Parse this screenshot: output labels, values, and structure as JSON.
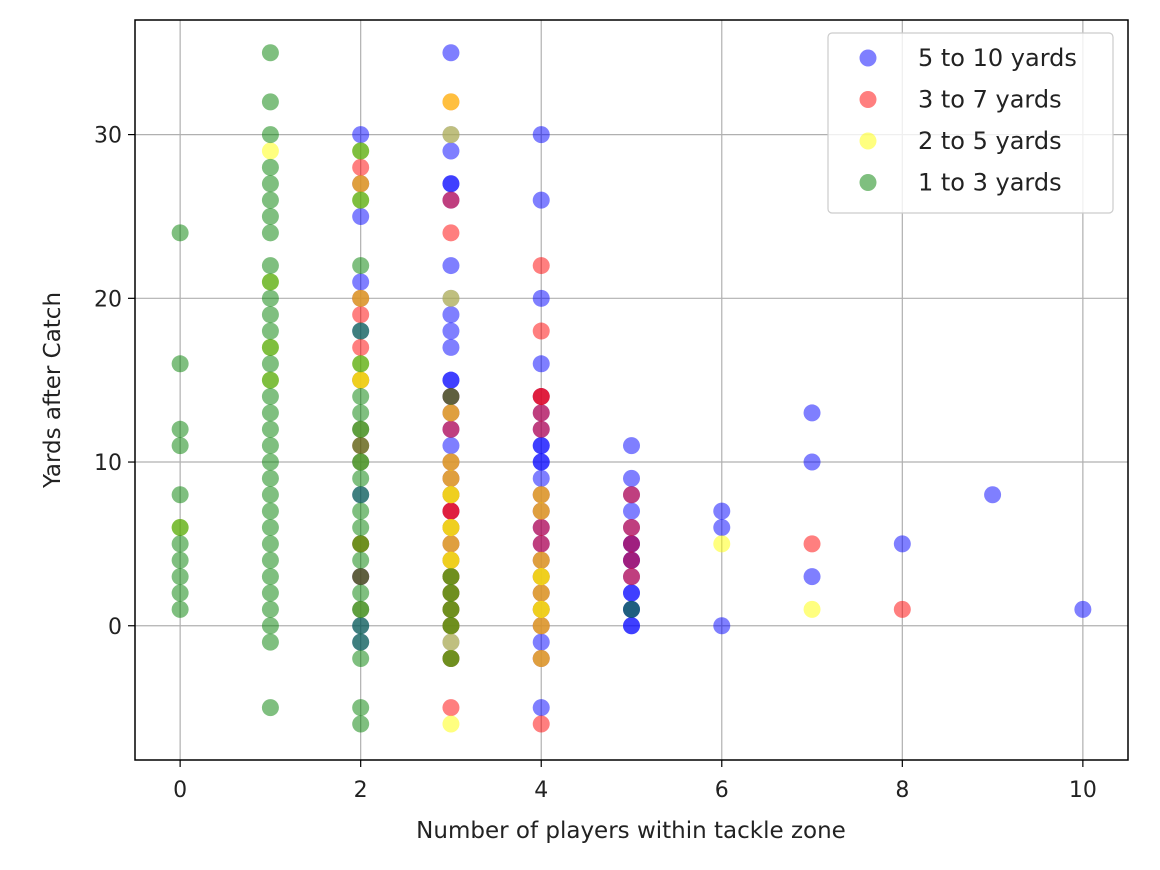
{
  "chart_data": {
    "type": "scatter",
    "title": "",
    "xlabel": "Number of players within tackle zone",
    "ylabel": "Yards after Catch",
    "xlim": [
      -0.5,
      10.5
    ],
    "ylim": [
      -8.2,
      37
    ],
    "xticks": [
      0,
      2,
      4,
      6,
      8,
      10
    ],
    "yticks": [
      0,
      10,
      20,
      30
    ],
    "grid": true,
    "legend_position": "upper right",
    "alpha": 0.5,
    "series": [
      {
        "name": "5 to 10 yards",
        "color": "#0000ff",
        "points": [
          [
            2,
            30
          ],
          [
            2,
            27
          ],
          [
            2,
            25
          ],
          [
            2,
            21
          ],
          [
            2,
            20
          ],
          [
            2,
            18
          ],
          [
            2,
            15
          ],
          [
            2,
            12
          ],
          [
            2,
            10
          ],
          [
            2,
            8
          ],
          [
            2,
            5
          ],
          [
            2,
            3
          ],
          [
            2,
            1
          ],
          [
            2,
            0
          ],
          [
            2,
            -1
          ],
          [
            3,
            35
          ],
          [
            3,
            30
          ],
          [
            3,
            29
          ],
          [
            3,
            27
          ],
          [
            3,
            27
          ],
          [
            3,
            26
          ],
          [
            3,
            22
          ],
          [
            3,
            20
          ],
          [
            3,
            19
          ],
          [
            3,
            18
          ],
          [
            3,
            17
          ],
          [
            3,
            15
          ],
          [
            3,
            15
          ],
          [
            3,
            14
          ],
          [
            3,
            13
          ],
          [
            3,
            12
          ],
          [
            3,
            11
          ],
          [
            3,
            10
          ],
          [
            3,
            9
          ],
          [
            3,
            8
          ],
          [
            3,
            7
          ],
          [
            3,
            6
          ],
          [
            3,
            5
          ],
          [
            3,
            4
          ],
          [
            3,
            3
          ],
          [
            3,
            2
          ],
          [
            3,
            1
          ],
          [
            3,
            0
          ],
          [
            3,
            -1
          ],
          [
            3,
            -2
          ],
          [
            4,
            30
          ],
          [
            4,
            26
          ],
          [
            4,
            20
          ],
          [
            4,
            16
          ],
          [
            4,
            14
          ],
          [
            4,
            13
          ],
          [
            4,
            12
          ],
          [
            4,
            11
          ],
          [
            4,
            11
          ],
          [
            4,
            10
          ],
          [
            4,
            10
          ],
          [
            4,
            9
          ],
          [
            4,
            8
          ],
          [
            4,
            7
          ],
          [
            4,
            6
          ],
          [
            4,
            5
          ],
          [
            4,
            4
          ],
          [
            4,
            3
          ],
          [
            4,
            2
          ],
          [
            4,
            1
          ],
          [
            4,
            0
          ],
          [
            4,
            -1
          ],
          [
            4,
            -2
          ],
          [
            4,
            -5
          ],
          [
            5,
            11
          ],
          [
            5,
            9
          ],
          [
            5,
            8
          ],
          [
            5,
            7
          ],
          [
            5,
            6
          ],
          [
            5,
            5
          ],
          [
            5,
            5
          ],
          [
            5,
            4
          ],
          [
            5,
            4
          ],
          [
            5,
            3
          ],
          [
            5,
            2
          ],
          [
            5,
            2
          ],
          [
            5,
            1
          ],
          [
            5,
            1
          ],
          [
            5,
            0
          ],
          [
            5,
            0
          ],
          [
            6,
            7
          ],
          [
            6,
            6
          ],
          [
            6,
            0
          ],
          [
            7,
            13
          ],
          [
            7,
            10
          ],
          [
            7,
            3
          ],
          [
            8,
            5
          ],
          [
            9,
            8
          ],
          [
            10,
            1
          ]
        ]
      },
      {
        "name": "3 to 7 yards",
        "color": "#ff0000",
        "points": [
          [
            2,
            28
          ],
          [
            2,
            27
          ],
          [
            2,
            20
          ],
          [
            2,
            19
          ],
          [
            2,
            17
          ],
          [
            2,
            15
          ],
          [
            2,
            11
          ],
          [
            2,
            5
          ],
          [
            2,
            3
          ],
          [
            3,
            32
          ],
          [
            3,
            26
          ],
          [
            3,
            24
          ],
          [
            3,
            14
          ],
          [
            3,
            13
          ],
          [
            3,
            12
          ],
          [
            3,
            10
          ],
          [
            3,
            9
          ],
          [
            3,
            8
          ],
          [
            3,
            7
          ],
          [
            3,
            7
          ],
          [
            3,
            6
          ],
          [
            3,
            5
          ],
          [
            3,
            4
          ],
          [
            3,
            3
          ],
          [
            3,
            2
          ],
          [
            3,
            1
          ],
          [
            3,
            0
          ],
          [
            3,
            -2
          ],
          [
            3,
            -5
          ],
          [
            4,
            22
          ],
          [
            4,
            18
          ],
          [
            4,
            14
          ],
          [
            4,
            14
          ],
          [
            4,
            13
          ],
          [
            4,
            12
          ],
          [
            4,
            8
          ],
          [
            4,
            7
          ],
          [
            4,
            6
          ],
          [
            4,
            5
          ],
          [
            4,
            4
          ],
          [
            4,
            3
          ],
          [
            4,
            2
          ],
          [
            4,
            1
          ],
          [
            4,
            0
          ],
          [
            4,
            -2
          ],
          [
            4,
            -6
          ],
          [
            5,
            8
          ],
          [
            5,
            6
          ],
          [
            5,
            5
          ],
          [
            5,
            4
          ],
          [
            5,
            3
          ],
          [
            7,
            5
          ],
          [
            8,
            1
          ]
        ]
      },
      {
        "name": "2 to 5 yards",
        "color": "#ffff00",
        "points": [
          [
            0,
            6
          ],
          [
            1,
            29
          ],
          [
            1,
            21
          ],
          [
            1,
            17
          ],
          [
            1,
            15
          ],
          [
            2,
            29
          ],
          [
            2,
            27
          ],
          [
            2,
            26
          ],
          [
            2,
            20
          ],
          [
            2,
            16
          ],
          [
            2,
            15
          ],
          [
            2,
            15
          ],
          [
            2,
            12
          ],
          [
            2,
            10
          ],
          [
            2,
            5
          ],
          [
            2,
            1
          ],
          [
            3,
            32
          ],
          [
            3,
            30
          ],
          [
            3,
            20
          ],
          [
            3,
            13
          ],
          [
            3,
            10
          ],
          [
            3,
            9
          ],
          [
            3,
            8
          ],
          [
            3,
            8
          ],
          [
            3,
            6
          ],
          [
            3,
            6
          ],
          [
            3,
            5
          ],
          [
            3,
            4
          ],
          [
            3,
            4
          ],
          [
            3,
            3
          ],
          [
            3,
            2
          ],
          [
            3,
            1
          ],
          [
            3,
            0
          ],
          [
            3,
            -1
          ],
          [
            3,
            -2
          ],
          [
            3,
            -6
          ],
          [
            4,
            8
          ],
          [
            4,
            7
          ],
          [
            4,
            4
          ],
          [
            4,
            3
          ],
          [
            4,
            3
          ],
          [
            4,
            2
          ],
          [
            4,
            1
          ],
          [
            4,
            1
          ],
          [
            4,
            0
          ],
          [
            4,
            -2
          ],
          [
            6,
            5
          ],
          [
            7,
            1
          ]
        ]
      },
      {
        "name": "1 to 3 yards",
        "color": "#008000",
        "points": [
          [
            0,
            24
          ],
          [
            0,
            16
          ],
          [
            0,
            12
          ],
          [
            0,
            11
          ],
          [
            0,
            8
          ],
          [
            0,
            6
          ],
          [
            0,
            5
          ],
          [
            0,
            4
          ],
          [
            0,
            3
          ],
          [
            0,
            2
          ],
          [
            0,
            1
          ],
          [
            1,
            35
          ],
          [
            1,
            32
          ],
          [
            1,
            30
          ],
          [
            1,
            28
          ],
          [
            1,
            27
          ],
          [
            1,
            26
          ],
          [
            1,
            25
          ],
          [
            1,
            24
          ],
          [
            1,
            22
          ],
          [
            1,
            21
          ],
          [
            1,
            20
          ],
          [
            1,
            19
          ],
          [
            1,
            18
          ],
          [
            1,
            17
          ],
          [
            1,
            16
          ],
          [
            1,
            15
          ],
          [
            1,
            14
          ],
          [
            1,
            13
          ],
          [
            1,
            12
          ],
          [
            1,
            11
          ],
          [
            1,
            10
          ],
          [
            1,
            9
          ],
          [
            1,
            8
          ],
          [
            1,
            7
          ],
          [
            1,
            6
          ],
          [
            1,
            5
          ],
          [
            1,
            4
          ],
          [
            1,
            3
          ],
          [
            1,
            2
          ],
          [
            1,
            1
          ],
          [
            1,
            0
          ],
          [
            1,
            -1
          ],
          [
            1,
            -5
          ],
          [
            2,
            29
          ],
          [
            2,
            26
          ],
          [
            2,
            22
          ],
          [
            2,
            18
          ],
          [
            2,
            16
          ],
          [
            2,
            14
          ],
          [
            2,
            13
          ],
          [
            2,
            12
          ],
          [
            2,
            11
          ],
          [
            2,
            10
          ],
          [
            2,
            9
          ],
          [
            2,
            8
          ],
          [
            2,
            7
          ],
          [
            2,
            6
          ],
          [
            2,
            5
          ],
          [
            2,
            4
          ],
          [
            2,
            3
          ],
          [
            2,
            2
          ],
          [
            2,
            1
          ],
          [
            2,
            0
          ],
          [
            2,
            -1
          ],
          [
            2,
            -2
          ],
          [
            2,
            -5
          ],
          [
            2,
            -6
          ],
          [
            3,
            14
          ],
          [
            3,
            3
          ],
          [
            3,
            2
          ],
          [
            3,
            1
          ],
          [
            3,
            0
          ],
          [
            3,
            -2
          ],
          [
            5,
            1
          ]
        ]
      }
    ]
  }
}
